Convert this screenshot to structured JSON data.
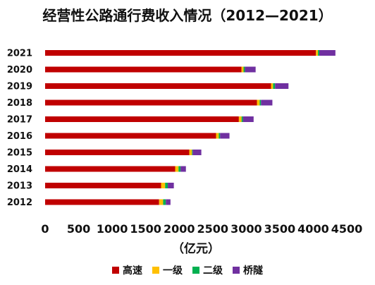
{
  "chart_data": {
    "type": "bar",
    "orientation": "horizontal",
    "stacked": true,
    "title": "经营性公路通行费收入情况（2012—2021）",
    "xlabel": "（亿元）",
    "ylabel": "",
    "xlim": [
      0,
      4500
    ],
    "xticks": [
      0,
      500,
      1000,
      1500,
      2000,
      2500,
      3000,
      3500,
      4000,
      4500
    ],
    "grid": false,
    "legend_position": "bottom",
    "categories": [
      "2021",
      "2020",
      "2019",
      "2018",
      "2017",
      "2016",
      "2015",
      "2014",
      "2013",
      "2012"
    ],
    "series": [
      {
        "name": "高速",
        "color": "#C00000",
        "values": [
          4040,
          2930,
          3370,
          3160,
          2890,
          2550,
          2150,
          1940,
          1730,
          1700
        ]
      },
      {
        "name": "一级",
        "color": "#FFC000",
        "values": [
          30,
          30,
          30,
          40,
          40,
          40,
          40,
          50,
          60,
          60
        ]
      },
      {
        "name": "二级",
        "color": "#00B050",
        "values": [
          20,
          20,
          30,
          20,
          20,
          20,
          10,
          30,
          40,
          40
        ]
      },
      {
        "name": "桥隧",
        "color": "#7030A0",
        "values": [
          240,
          160,
          200,
          170,
          160,
          140,
          130,
          80,
          90,
          70
        ]
      }
    ]
  }
}
